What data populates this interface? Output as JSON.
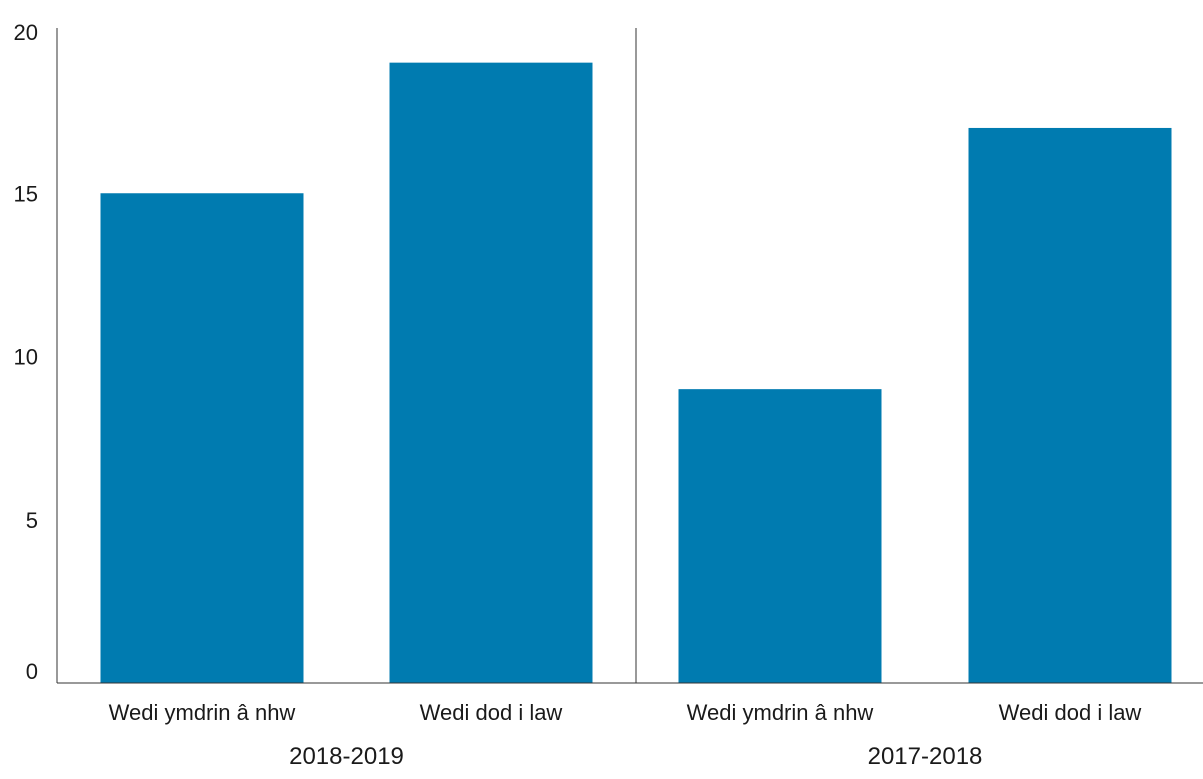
{
  "chart_data": {
    "type": "bar",
    "title": "",
    "xlabel": "",
    "ylabel": "",
    "ylim": [
      0,
      20
    ],
    "yticks": [
      0,
      5,
      10,
      15,
      20
    ],
    "grid": false,
    "bar_color": "#007bb0",
    "groups": [
      {
        "label": "2018-2019",
        "categories": [
          "Wedi ymdrin â nhw",
          "Wedi dod i law"
        ],
        "values": [
          15,
          19
        ]
      },
      {
        "label": "2017-2018",
        "categories": [
          "Wedi ymdrin â nhw",
          "Wedi dod i law"
        ],
        "values": [
          9,
          17
        ]
      }
    ]
  }
}
